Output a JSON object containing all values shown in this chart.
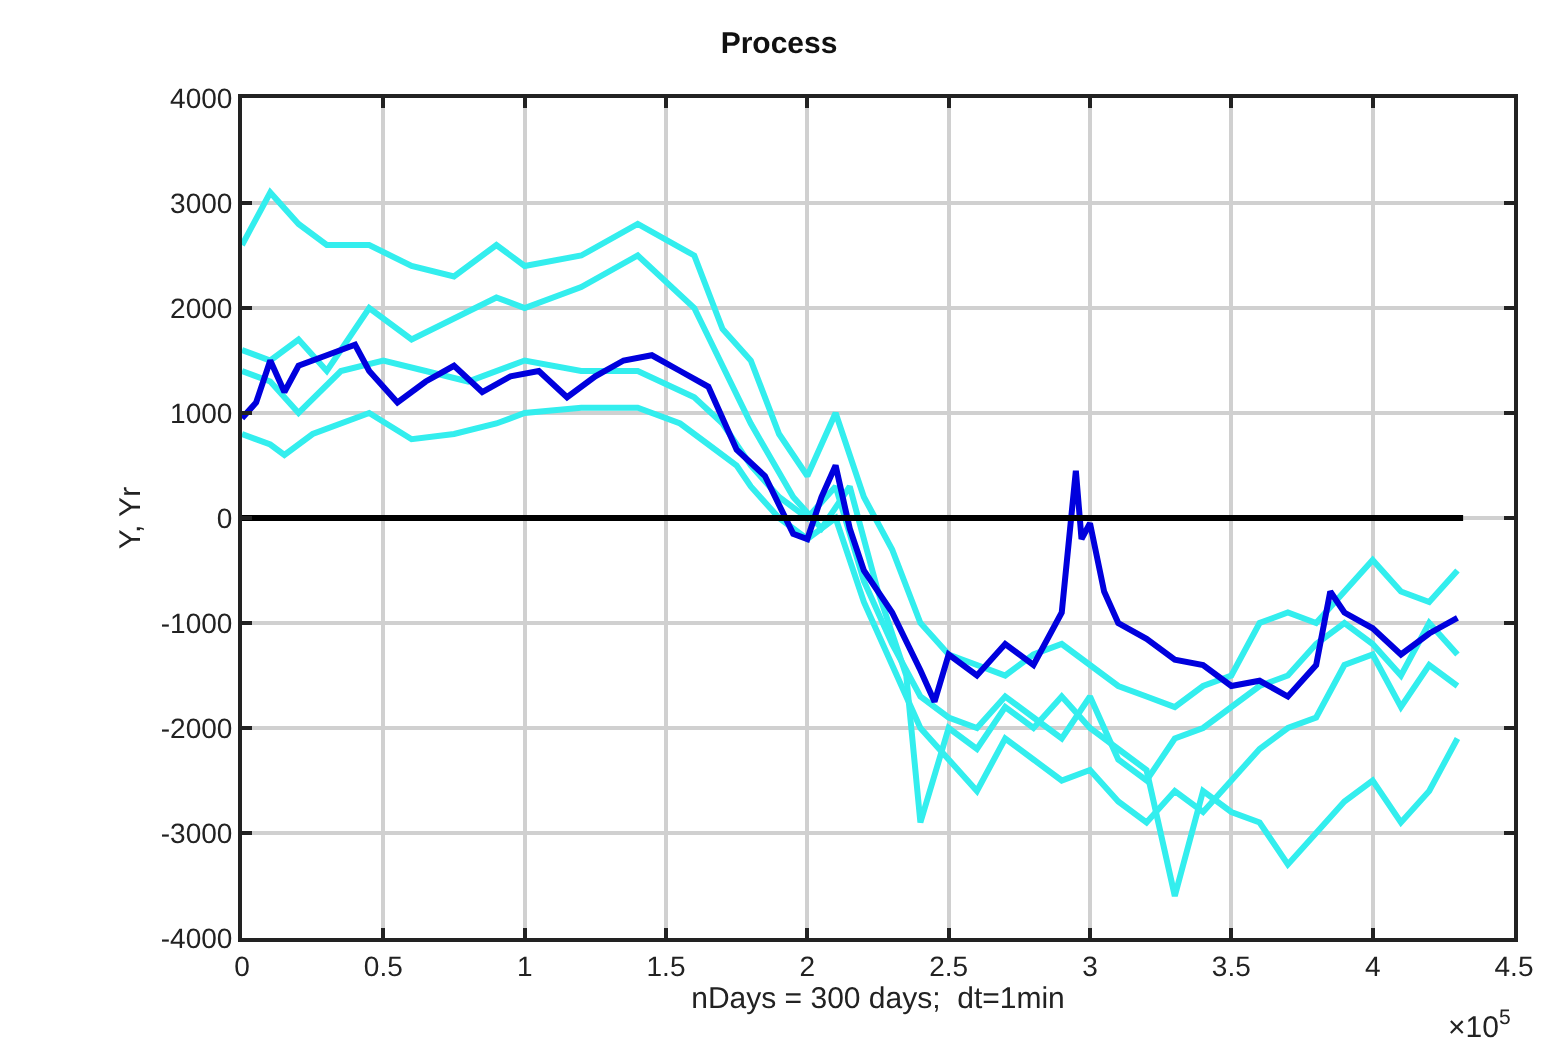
{
  "chart_data": {
    "type": "line",
    "title": "Process",
    "xlabel": "nDays = 300 days;  dt=1min",
    "ylabel": "Y, Yr",
    "annotations": [
      "×10$^{5}$"
    ],
    "xlim": [
      0,
      4.5
    ],
    "xticks": [
      0,
      0.5,
      1,
      1.5,
      2,
      2.5,
      3,
      3.5,
      4,
      4.5
    ],
    "ylim": [
      -4000,
      4000
    ],
    "yticks": [
      -4000,
      -3000,
      -2000,
      -1000,
      0,
      1000,
      2000,
      3000,
      4000
    ],
    "grid": true,
    "series": [
      {
        "color": "#33eeee",
        "x": [
          0,
          0.1,
          0.2,
          0.3,
          0.45,
          0.6,
          0.75,
          0.9,
          1.0,
          1.2,
          1.4,
          1.6,
          1.7,
          1.8,
          1.9,
          2.0,
          2.1,
          2.2,
          2.3,
          2.4,
          2.5,
          2.6,
          2.7,
          2.8,
          2.9,
          3.0,
          3.1,
          3.2,
          3.3,
          3.4,
          3.5,
          3.6,
          3.7,
          3.8,
          3.9,
          4.0,
          4.1,
          4.2,
          4.3
        ],
        "values": [
          2600,
          3100,
          2800,
          2600,
          2600,
          2400,
          2300,
          2600,
          2400,
          2500,
          2800,
          2500,
          1800,
          1500,
          800,
          400,
          1000,
          200,
          -300,
          -1000,
          -1300,
          -1400,
          -1500,
          -1300,
          -1200,
          -1400,
          -1600,
          -1700,
          -1800,
          -1600,
          -1500,
          -1000,
          -900,
          -1000,
          -700,
          -400,
          -700,
          -800,
          -500
        ]
      },
      {
        "color": "#33eeee",
        "x": [
          0,
          0.1,
          0.2,
          0.3,
          0.45,
          0.6,
          0.75,
          0.9,
          1.0,
          1.2,
          1.4,
          1.6,
          1.8,
          1.95,
          2.05,
          2.15,
          2.25,
          2.35,
          2.4,
          2.5,
          2.6,
          2.7,
          2.8,
          2.9,
          3.0,
          3.1,
          3.2,
          3.3,
          3.4,
          3.5,
          3.6,
          3.7,
          3.8,
          3.9,
          4.0,
          4.1,
          4.2,
          4.3
        ],
        "values": [
          1600,
          1500,
          1700,
          1400,
          2000,
          1700,
          1900,
          2100,
          2000,
          2200,
          2500,
          2000,
          900,
          200,
          -100,
          300,
          -700,
          -1500,
          -2900,
          -2000,
          -2200,
          -1800,
          -2000,
          -1700,
          -2000,
          -2200,
          -2400,
          -3600,
          -2600,
          -2800,
          -2900,
          -3300,
          -3000,
          -2700,
          -2500,
          -2900,
          -2600,
          -2100
        ]
      },
      {
        "color": "#33eeee",
        "x": [
          0,
          0.1,
          0.2,
          0.35,
          0.5,
          0.65,
          0.8,
          1.0,
          1.2,
          1.4,
          1.6,
          1.7,
          1.8,
          1.9,
          2.0,
          2.1,
          2.2,
          2.3,
          2.4,
          2.5,
          2.6,
          2.7,
          2.8,
          2.9,
          3.0,
          3.1,
          3.2,
          3.3,
          3.4,
          3.5,
          3.6,
          3.7,
          3.8,
          3.9,
          4.0,
          4.1,
          4.2,
          4.3
        ],
        "values": [
          1400,
          1300,
          1000,
          1400,
          1500,
          1400,
          1300,
          1500,
          1400,
          1400,
          1150,
          900,
          500,
          200,
          0,
          300,
          -600,
          -1200,
          -1700,
          -1900,
          -2000,
          -1700,
          -1900,
          -2100,
          -1700,
          -2300,
          -2500,
          -2100,
          -2000,
          -1800,
          -1600,
          -1500,
          -1200,
          -1000,
          -1200,
          -1500,
          -1000,
          -1300
        ]
      },
      {
        "color": "#33eeee",
        "x": [
          0,
          0.1,
          0.15,
          0.25,
          0.45,
          0.6,
          0.75,
          0.9,
          1.0,
          1.2,
          1.4,
          1.55,
          1.65,
          1.75,
          1.8,
          1.9,
          2.0,
          2.1,
          2.2,
          2.3,
          2.4,
          2.5,
          2.6,
          2.7,
          2.8,
          2.9,
          3.0,
          3.1,
          3.2,
          3.3,
          3.4,
          3.5,
          3.6,
          3.7,
          3.8,
          3.9,
          4.0,
          4.1,
          4.2,
          4.3
        ],
        "values": [
          800,
          700,
          600,
          800,
          1000,
          750,
          800,
          900,
          1000,
          1050,
          1050,
          900,
          700,
          500,
          300,
          0,
          -200,
          0,
          -800,
          -1400,
          -2000,
          -2300,
          -2600,
          -2100,
          -2300,
          -2500,
          -2400,
          -2700,
          -2900,
          -2600,
          -2800,
          -2500,
          -2200,
          -2000,
          -1900,
          -1400,
          -1300,
          -1800,
          -1400,
          -1600
        ]
      },
      {
        "color": "#0000dd",
        "x": [
          0,
          0.05,
          0.1,
          0.15,
          0.2,
          0.3,
          0.4,
          0.45,
          0.55,
          0.65,
          0.75,
          0.85,
          0.95,
          1.05,
          1.15,
          1.25,
          1.35,
          1.45,
          1.55,
          1.65,
          1.75,
          1.85,
          1.95,
          2.0,
          2.05,
          2.1,
          2.15,
          2.2,
          2.3,
          2.4,
          2.45,
          2.5,
          2.6,
          2.7,
          2.8,
          2.9,
          2.95,
          2.97,
          3.0,
          3.05,
          3.1,
          3.2,
          3.3,
          3.4,
          3.5,
          3.6,
          3.7,
          3.8,
          3.85,
          3.9,
          4.0,
          4.1,
          4.2,
          4.3
        ],
        "values": [
          950,
          1100,
          1500,
          1200,
          1450,
          1550,
          1650,
          1400,
          1100,
          1300,
          1450,
          1200,
          1350,
          1400,
          1150,
          1350,
          1500,
          1550,
          1400,
          1250,
          650,
          400,
          -150,
          -200,
          200,
          500,
          -100,
          -500,
          -900,
          -1450,
          -1750,
          -1300,
          -1500,
          -1200,
          -1400,
          -900,
          450,
          -200,
          -50,
          -700,
          -1000,
          -1150,
          -1350,
          -1400,
          -1600,
          -1550,
          -1700,
          -1400,
          -700,
          -900,
          -1050,
          -1300,
          -1100,
          -950
        ]
      },
      {
        "color": "#000000",
        "x": [
          0,
          4.32
        ],
        "values": [
          0,
          0
        ]
      }
    ]
  }
}
